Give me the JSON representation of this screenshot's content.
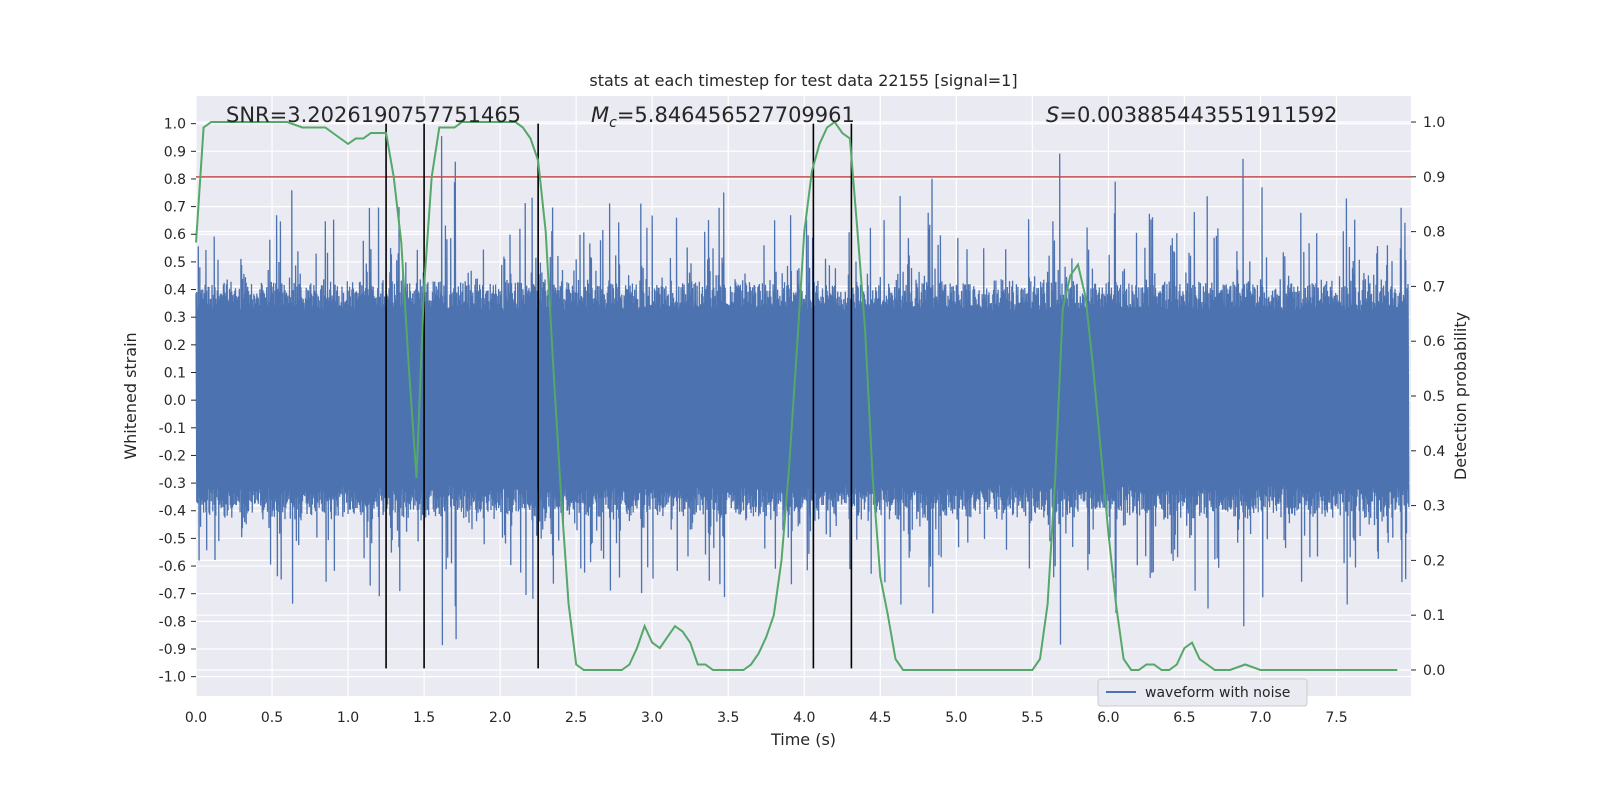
{
  "chart_data": {
    "type": "line",
    "title": "stats at each timestep for test data 22155 [signal=1]",
    "xlabel": "Time (s)",
    "ylabel_left": "Whitened strain",
    "ylabel_right": "Detection probability",
    "xlim": [
      0,
      7.99
    ],
    "ylim_left": [
      -1.07,
      1.1
    ],
    "ylim_right": [
      -0.0475,
      1.0475
    ],
    "x_ticks": [
      0.0,
      0.5,
      1.0,
      1.5,
      2.0,
      2.5,
      3.0,
      3.5,
      4.0,
      4.5,
      5.0,
      5.5,
      6.0,
      6.5,
      7.0,
      7.5
    ],
    "x_tick_labels": [
      "0.0",
      "0.5",
      "1.0",
      "1.5",
      "2.0",
      "2.5",
      "3.0",
      "3.5",
      "4.0",
      "4.5",
      "5.0",
      "5.5",
      "6.0",
      "6.5",
      "7.0",
      "7.5"
    ],
    "y_left_ticks": [
      1.0,
      0.9,
      0.8,
      0.7,
      0.6,
      0.5,
      0.4,
      0.3,
      0.2,
      0.1,
      0.0,
      -0.1,
      -0.2,
      -0.3,
      -0.4,
      -0.5,
      -0.6,
      -0.7,
      -0.8,
      -0.9,
      -1.0
    ],
    "y_left_tick_labels": [
      "1.0",
      "0.9",
      "0.8",
      "0.7",
      "0.6",
      "0.5",
      "0.4",
      "0.3",
      "0.2",
      "0.1",
      "0.0",
      "-0.1",
      "-0.2",
      "-0.3",
      "-0.4",
      "-0.5",
      "-0.6",
      "-0.7",
      "-0.8",
      "-0.9",
      "-1.0"
    ],
    "y_right_ticks": [
      1.0,
      0.9,
      0.8,
      0.7,
      0.6,
      0.5,
      0.4,
      0.3,
      0.2,
      0.1,
      0.0
    ],
    "y_right_tick_labels": [
      "1.0",
      "0.9",
      "0.8",
      "0.7",
      "0.6",
      "0.5",
      "0.4",
      "0.3",
      "0.2",
      "0.1",
      "0.0"
    ],
    "annotations": {
      "snr": "SNR=3.2026190757751465",
      "mc_symbol": "M",
      "mc_subscript": "c",
      "mc_value": "=5.846456527709961",
      "s_symbol": "S",
      "s_value": "=0.003885443551911592"
    },
    "threshold": 0.9,
    "vertical_lines_x": [
      1.25,
      1.5,
      2.25,
      4.06,
      4.31
    ],
    "waveform": {
      "name": "waveform with noise",
      "sample_step": 0.005,
      "noise_seed": 22155,
      "core_amplitude": 0.4,
      "spike_amplitude_max": 0.98
    },
    "probability": {
      "x": [
        0.0,
        0.05,
        0.1,
        0.15,
        0.2,
        0.3,
        0.4,
        0.5,
        0.6,
        0.7,
        0.75,
        0.8,
        0.85,
        0.9,
        0.95,
        1.0,
        1.05,
        1.1,
        1.15,
        1.2,
        1.25,
        1.3,
        1.35,
        1.4,
        1.45,
        1.5,
        1.55,
        1.6,
        1.65,
        1.7,
        1.75,
        1.8,
        1.9,
        2.0,
        2.1,
        2.15,
        2.2,
        2.25,
        2.3,
        2.35,
        2.4,
        2.45,
        2.5,
        2.55,
        2.6,
        2.7,
        2.75,
        2.8,
        2.85,
        2.9,
        2.95,
        3.0,
        3.05,
        3.1,
        3.15,
        3.2,
        3.25,
        3.3,
        3.35,
        3.4,
        3.45,
        3.5,
        3.55,
        3.6,
        3.65,
        3.7,
        3.75,
        3.8,
        3.85,
        3.9,
        3.95,
        4.0,
        4.05,
        4.1,
        4.15,
        4.2,
        4.25,
        4.3,
        4.35,
        4.4,
        4.45,
        4.5,
        4.55,
        4.6,
        4.65,
        4.7,
        4.8,
        4.9,
        5.0,
        5.1,
        5.2,
        5.3,
        5.4,
        5.45,
        5.5,
        5.55,
        5.6,
        5.65,
        5.7,
        5.75,
        5.8,
        5.85,
        5.9,
        5.95,
        6.0,
        6.05,
        6.1,
        6.15,
        6.2,
        6.25,
        6.3,
        6.35,
        6.4,
        6.45,
        6.5,
        6.55,
        6.6,
        6.65,
        6.7,
        6.8,
        6.9,
        7.0,
        7.1,
        7.2,
        7.3,
        7.4,
        7.5,
        7.6,
        7.7,
        7.8,
        7.9
      ],
      "y": [
        0.78,
        0.99,
        1.0,
        1.0,
        1.0,
        1.0,
        1.0,
        1.0,
        1.0,
        0.99,
        0.99,
        0.99,
        0.99,
        0.98,
        0.97,
        0.96,
        0.97,
        0.97,
        0.98,
        0.98,
        0.98,
        0.9,
        0.78,
        0.55,
        0.35,
        0.7,
        0.9,
        0.99,
        0.99,
        0.99,
        1.0,
        1.0,
        1.0,
        1.0,
        1.0,
        0.99,
        0.97,
        0.93,
        0.8,
        0.55,
        0.32,
        0.12,
        0.01,
        0.0,
        0.0,
        0.0,
        0.0,
        0.0,
        0.01,
        0.04,
        0.08,
        0.05,
        0.04,
        0.06,
        0.08,
        0.07,
        0.05,
        0.01,
        0.01,
        0.0,
        0.0,
        0.0,
        0.0,
        0.0,
        0.01,
        0.03,
        0.06,
        0.1,
        0.2,
        0.37,
        0.58,
        0.8,
        0.91,
        0.96,
        0.99,
        1.0,
        0.98,
        0.97,
        0.8,
        0.62,
        0.35,
        0.17,
        0.1,
        0.02,
        0.0,
        0.0,
        0.0,
        0.0,
        0.0,
        0.0,
        0.0,
        0.0,
        0.0,
        0.0,
        0.0,
        0.02,
        0.12,
        0.35,
        0.66,
        0.72,
        0.74,
        0.68,
        0.55,
        0.4,
        0.25,
        0.12,
        0.02,
        0.0,
        0.0,
        0.01,
        0.01,
        0.0,
        0.0,
        0.01,
        0.04,
        0.05,
        0.02,
        0.01,
        0.0,
        0.0,
        0.01,
        0.0,
        0.0,
        0.0,
        0.0,
        0.0,
        0.0,
        0.0,
        0.0,
        0.0,
        0.0
      ]
    },
    "colors": {
      "background": "#eaeaf2",
      "grid": "#ffffff",
      "waveform": "#4c72b0",
      "probability": "#55a868",
      "threshold": "#c44e52",
      "vlines": "#000000",
      "text": "#262626"
    },
    "legend_position": "lower-center"
  }
}
